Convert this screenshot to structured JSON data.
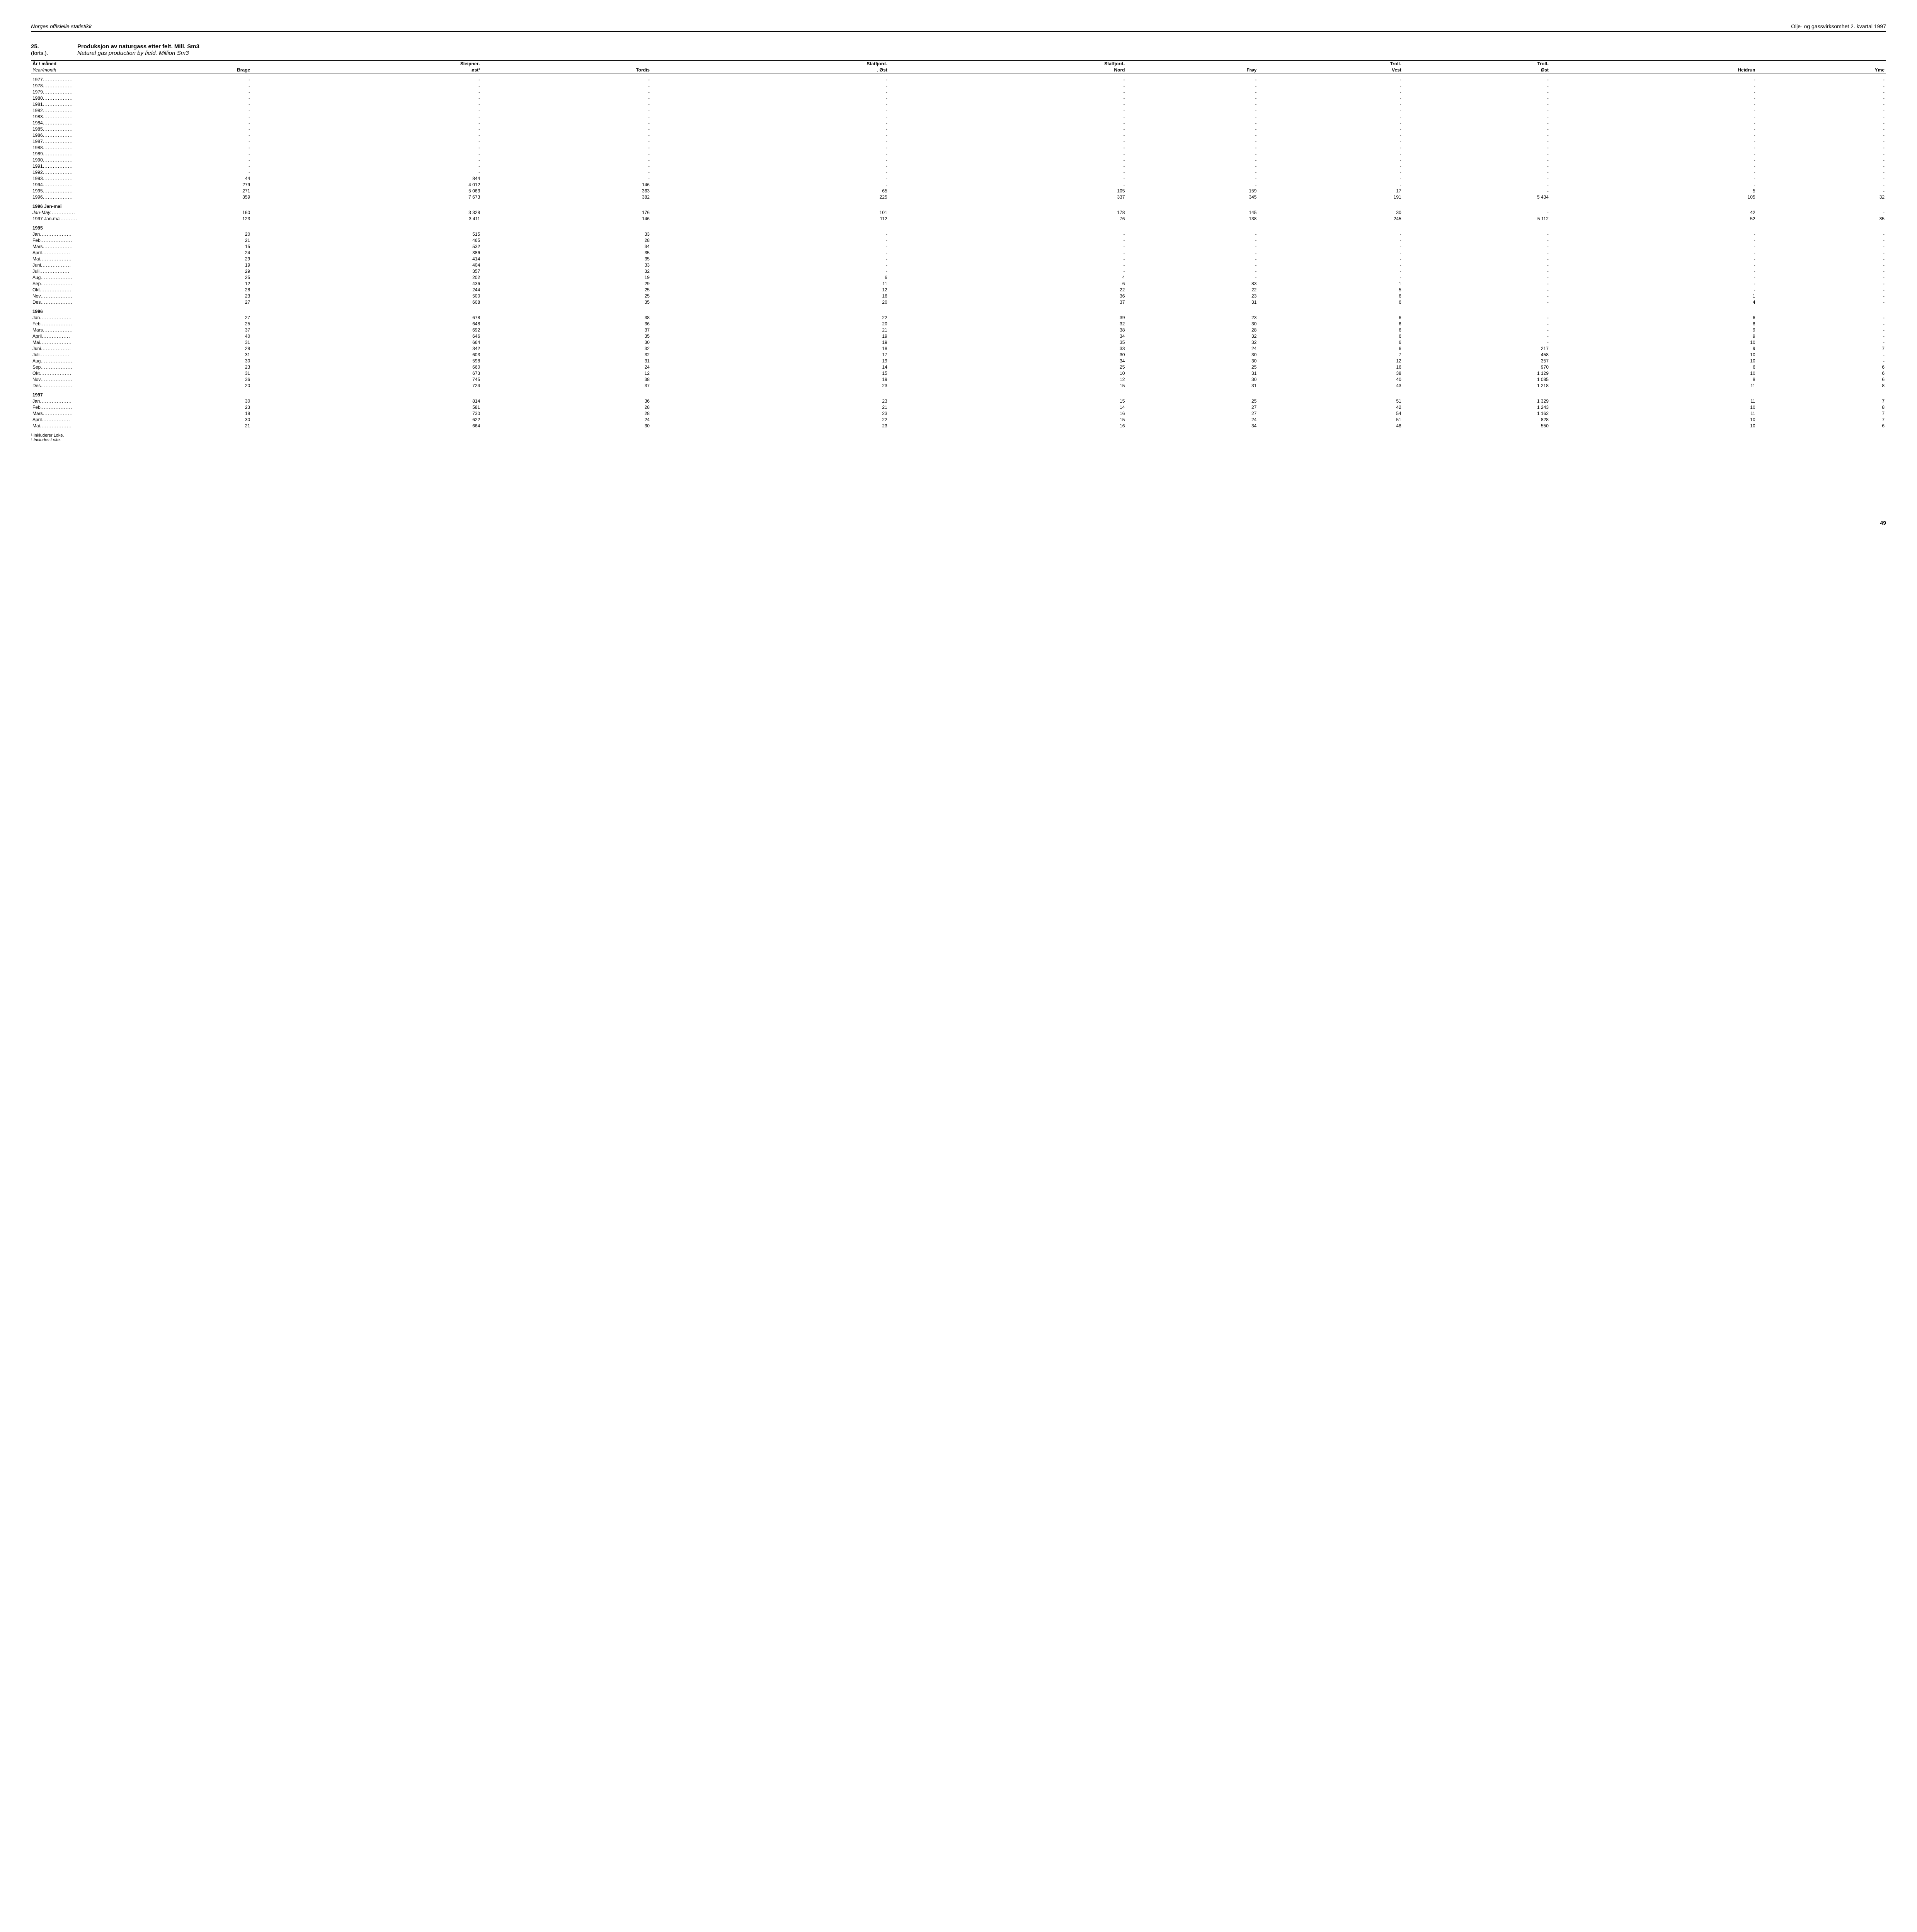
{
  "header": {
    "left": "Norges offisielle statistikk",
    "right": "Olje- og gassvirksomhet 2. kvartal 1997"
  },
  "title": {
    "num": "25.",
    "forts": "(forts.).",
    "no": "Produksjon av naturgass etter felt.  Mill. Sm3",
    "en": "Natural gas production by field. Million Sm3"
  },
  "columns_line1": [
    "År / måned",
    "",
    "Sleipner-",
    "",
    "Statfjord-",
    "Statfjord-",
    "",
    "Troll-",
    "Troll-",
    "",
    ""
  ],
  "columns_line2_no": "Year/month",
  "columns_line2": [
    "Brage",
    "øst¹",
    "Tordis",
    ".   Øst",
    "Nord",
    "Frøy",
    "Vest",
    "Øst",
    "Heidrun",
    "Yme"
  ],
  "sections": [
    {
      "header": null,
      "rows": [
        {
          "label": "1977",
          "dots": true,
          "v": [
            "-",
            "-",
            "-",
            "-",
            "-",
            "-",
            "-",
            "-",
            "-",
            "-"
          ]
        },
        {
          "label": "1978",
          "dots": true,
          "v": [
            "-",
            "-",
            "-",
            "-",
            "-",
            "-",
            "-",
            "-",
            "-",
            "-"
          ]
        },
        {
          "label": "1979",
          "dots": true,
          "v": [
            "-",
            "-",
            "-",
            "-",
            "-",
            "-",
            "-",
            "-",
            "-",
            "-"
          ]
        },
        {
          "label": "1980",
          "dots": true,
          "v": [
            "-",
            "-",
            "-",
            "-",
            "-",
            "-",
            "-",
            "-",
            "-",
            "-"
          ]
        },
        {
          "label": "1981",
          "dots": true,
          "v": [
            "-",
            "-",
            "-",
            "-",
            "-",
            "-",
            "-",
            "-",
            "-",
            "-"
          ]
        },
        {
          "label": "1982",
          "dots": true,
          "v": [
            "-",
            "-",
            "-",
            "-",
            "-",
            "-",
            "-",
            "-",
            "-",
            "-"
          ]
        },
        {
          "label": "1983",
          "dots": true,
          "v": [
            "-",
            "-",
            "-",
            "-",
            "-",
            "-",
            "-",
            "-",
            "-",
            "-"
          ]
        },
        {
          "label": "1984",
          "dots": true,
          "v": [
            "-",
            "-",
            "-",
            "-",
            "-",
            "-",
            "-",
            "-",
            "-",
            "-"
          ]
        },
        {
          "label": "1985",
          "dots": true,
          "v": [
            "-",
            "-",
            "-",
            "-",
            "-",
            "-",
            "-",
            "-",
            "-",
            "-"
          ]
        },
        {
          "label": "1986",
          "dots": true,
          "v": [
            "-",
            "-",
            "-",
            "-",
            "-",
            "-",
            "-",
            "-",
            "-",
            "-"
          ]
        },
        {
          "label": "1987",
          "dots": true,
          "v": [
            "-",
            "-",
            "-",
            "-",
            "-",
            "-",
            "-",
            "-",
            "-",
            "-"
          ]
        },
        {
          "label": "1988",
          "dots": true,
          "v": [
            "-",
            "-",
            "-",
            "-",
            "-",
            "-",
            "-",
            "-",
            "-",
            "-"
          ]
        },
        {
          "label": "1989",
          "dots": true,
          "v": [
            "-",
            "-",
            "-",
            "-",
            "-",
            "-",
            "-",
            "-",
            "-",
            "-"
          ]
        },
        {
          "label": "1990",
          "dots": true,
          "v": [
            "-",
            "-",
            "-",
            "-",
            "-",
            "-",
            "-",
            "-",
            "-",
            "-"
          ]
        },
        {
          "label": "1991",
          "dots": true,
          "v": [
            "-",
            "-",
            "-",
            "-",
            "-",
            "-",
            "-",
            "-",
            "-",
            "-"
          ]
        },
        {
          "label": "1992",
          "dots": true,
          "v": [
            "-",
            "-",
            "-",
            "-",
            "-",
            "-",
            "-",
            "-",
            "-",
            "-"
          ]
        },
        {
          "label": "1993",
          "dots": true,
          "v": [
            "44",
            "844",
            "-",
            "-",
            "-",
            "-",
            "-",
            "-",
            "-",
            "-"
          ]
        },
        {
          "label": "1994",
          "dots": true,
          "v": [
            "279",
            "4 012",
            "146",
            "-",
            "-",
            "-",
            "-",
            "-",
            "-",
            "-"
          ]
        },
        {
          "label": "1995",
          "dots": true,
          "v": [
            "271",
            "5 063",
            "363",
            "65",
            "105",
            "159",
            "17",
            "-",
            "5",
            "-"
          ]
        },
        {
          "label": "1996",
          "dots": true,
          "v": [
            "359",
            "7 673",
            "382",
            "225",
            "337",
            "345",
            "191",
            "5 434",
            "105",
            "32"
          ]
        }
      ]
    },
    {
      "header": "1996 Jan-mai",
      "rows": [
        {
          "label": "Jan-May",
          "dots": true,
          "italic": true,
          "v": [
            "160",
            "3 328",
            "176",
            "101",
            "178",
            "145",
            "30",
            "-",
            "42",
            "-"
          ]
        },
        {
          "label": "1997 Jan-mai",
          "dots": true,
          "v": [
            "123",
            "3 411",
            "146",
            "112",
            "76",
            "138",
            "245",
            "5 112",
            "52",
            "35"
          ]
        }
      ]
    },
    {
      "header": "1995",
      "rows": [
        {
          "label": "Jan",
          "dots": true,
          "v": [
            "20",
            "515",
            "33",
            "-",
            "-",
            "-",
            "-",
            "-",
            "-",
            "-"
          ]
        },
        {
          "label": "Feb",
          "dots": true,
          "v": [
            "21",
            "465",
            "28",
            "-",
            "-",
            "-",
            "-",
            "-",
            "-",
            "-"
          ]
        },
        {
          "label": "Mars",
          "dots": true,
          "v": [
            "15",
            "532",
            "34",
            "-",
            "-",
            "-",
            "-",
            "-",
            "-",
            "-"
          ]
        },
        {
          "label": "April",
          "dots": true,
          "v": [
            "24",
            "386",
            "35",
            "-",
            "-",
            "-",
            "-",
            "-",
            "-",
            "-"
          ]
        },
        {
          "label": "Mai",
          "dots": true,
          "v": [
            "29",
            "414",
            "35",
            "-",
            "-",
            "-",
            "-",
            "-",
            "-",
            "-"
          ]
        },
        {
          "label": "Juni",
          "dots": true,
          "v": [
            "19",
            "404",
            "33",
            "-",
            "-",
            "-",
            "-",
            "-",
            "-",
            "-"
          ]
        },
        {
          "label": "Juli",
          "dots": true,
          "v": [
            "29",
            "357",
            "32",
            "-",
            "-",
            "-",
            "-",
            "-",
            "-",
            "-"
          ]
        },
        {
          "label": "Aug",
          "dots": true,
          "v": [
            "25",
            "202",
            "19",
            "6",
            "4",
            "-",
            "-",
            "-",
            "-",
            "-"
          ]
        },
        {
          "label": "Sep",
          "dots": true,
          "v": [
            "12",
            "436",
            "29",
            "11",
            "6",
            "83",
            "1",
            "-",
            "-",
            "-"
          ]
        },
        {
          "label": "Okt",
          "dots": true,
          "v": [
            "28",
            "244",
            "25",
            "12",
            "22",
            "22",
            "5",
            "-",
            "-",
            "-"
          ]
        },
        {
          "label": "Nov",
          "dots": true,
          "v": [
            "23",
            "500",
            "25",
            "16",
            "36",
            "23",
            "6",
            "-",
            "1",
            "-"
          ]
        },
        {
          "label": "Des",
          "dots": true,
          "v": [
            "27",
            "608",
            "35",
            "20",
            "37",
            "31",
            "6",
            "-",
            "4",
            "-"
          ]
        }
      ]
    },
    {
      "header": "1996",
      "rows": [
        {
          "label": "Jan",
          "dots": true,
          "v": [
            "27",
            "678",
            "38",
            "22",
            "39",
            "23",
            "6",
            "-",
            "6",
            "-"
          ]
        },
        {
          "label": "Feb",
          "dots": true,
          "v": [
            "25",
            "648",
            "36",
            "20",
            "32",
            "30",
            "6",
            "-",
            "8",
            "-"
          ]
        },
        {
          "label": "Mars",
          "dots": true,
          "v": [
            "37",
            "692",
            "37",
            "21",
            "38",
            "28",
            "6",
            "-",
            "9",
            "-"
          ]
        },
        {
          "label": "April",
          "dots": true,
          "v": [
            "40",
            "646",
            "35",
            "19",
            "34",
            "32",
            "6",
            "-",
            "9",
            "-"
          ]
        },
        {
          "label": "Mai",
          "dots": true,
          "v": [
            "31",
            "664",
            "30",
            "19",
            "35",
            "32",
            "6",
            "-",
            "10",
            "-"
          ]
        },
        {
          "label": "Juni",
          "dots": true,
          "v": [
            "28",
            "342",
            "32",
            "18",
            "33",
            "24",
            "6",
            "217",
            "9",
            "7"
          ]
        },
        {
          "label": "Juli",
          "dots": true,
          "v": [
            "31",
            "603",
            "32",
            "17",
            "30",
            "30",
            "7",
            "458",
            "10",
            "-"
          ]
        },
        {
          "label": "Aug",
          "dots": true,
          "v": [
            "30",
            "598",
            "31",
            "19",
            "34",
            "30",
            "12",
            "357",
            "10",
            "-"
          ]
        },
        {
          "label": "Sep",
          "dots": true,
          "v": [
            "23",
            "660",
            "24",
            "14",
            "25",
            "25",
            "16",
            "970",
            "6",
            "6"
          ]
        },
        {
          "label": "Okt",
          "dots": true,
          "v": [
            "31",
            "673",
            "12",
            "15",
            "10",
            "31",
            "38",
            "1 129",
            "10",
            "6"
          ]
        },
        {
          "label": "Nov",
          "dots": true,
          "v": [
            "36",
            "745",
            "38",
            "19",
            "12",
            "30",
            "40",
            "1 085",
            "8",
            "6"
          ]
        },
        {
          "label": "Des",
          "dots": true,
          "v": [
            "20",
            "724",
            "37",
            "23",
            "15",
            "31",
            "43",
            "1 218",
            "11",
            "8"
          ]
        }
      ]
    },
    {
      "header": "1997",
      "rows": [
        {
          "label": "Jan",
          "dots": true,
          "v": [
            "30",
            "814",
            "36",
            "23",
            "15",
            "25",
            "51",
            "1 329",
            "11",
            "7"
          ]
        },
        {
          "label": "Feb",
          "dots": true,
          "v": [
            "23",
            "581",
            "28",
            "21",
            "14",
            "27",
            "42",
            "1 243",
            "10",
            "8"
          ]
        },
        {
          "label": "Mars",
          "dots": true,
          "v": [
            "18",
            "730",
            "28",
            "23",
            "16",
            "27",
            "54",
            "1 162",
            "11",
            "7"
          ]
        },
        {
          "label": "April",
          "dots": true,
          "v": [
            "30",
            "622",
            "24",
            "22",
            "15",
            "24",
            "51",
            "828",
            "10",
            "7"
          ]
        },
        {
          "label": "Mai",
          "dots": true,
          "v": [
            "21",
            "664",
            "30",
            "23",
            "16",
            "34",
            "48",
            "550",
            "10",
            "6"
          ],
          "last": true
        }
      ]
    }
  ],
  "footnotes": {
    "no": "¹ Inkluderer Loke.",
    "en": "¹ Includes Loke."
  },
  "page_number": "49"
}
